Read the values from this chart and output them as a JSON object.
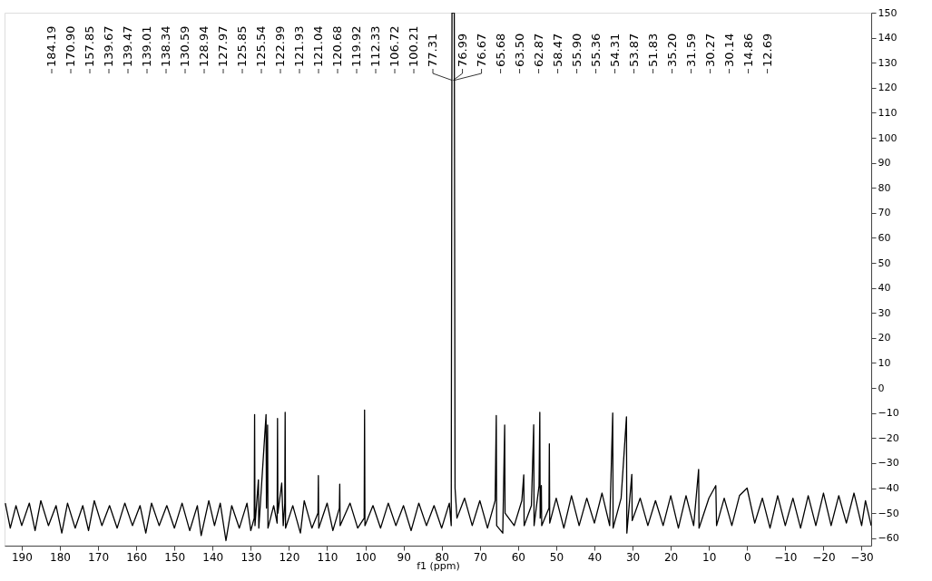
{
  "chart_data": {
    "type": "line",
    "xlabel": "f1 (ppm)",
    "xlim": [
      194.5,
      -32.5
    ],
    "xticks": [
      190,
      180,
      170,
      160,
      150,
      140,
      130,
      120,
      110,
      100,
      90,
      80,
      70,
      60,
      50,
      40,
      30,
      20,
      10,
      0,
      -10,
      -20,
      -30
    ],
    "ylim": [
      -63,
      150
    ],
    "yticks": [
      -60,
      -50,
      -40,
      -30,
      -20,
      -10,
      0,
      10,
      20,
      30,
      40,
      50,
      60,
      70,
      80,
      90,
      100,
      110,
      120,
      130,
      140,
      150
    ],
    "grid": false,
    "marker": "none",
    "line_style": "solid",
    "series": [
      {
        "color": "#000000",
        "x": [
          194.3,
          193,
          191.5,
          190,
          188,
          186.5,
          185,
          183,
          181,
          179.5,
          178,
          176,
          174,
          172.5,
          171,
          169,
          167,
          165,
          163,
          161,
          159,
          157.5,
          156,
          154,
          152,
          150,
          148,
          146,
          144,
          143,
          141,
          139.5,
          138,
          136.5,
          135,
          133,
          131,
          130,
          129.1,
          129.0,
          128.9,
          128.0,
          127.9,
          126.0,
          125.9,
          125.6,
          125.5,
          124,
          123.1,
          123.0,
          122.9,
          121.9,
          121.5,
          121.1,
          121.0,
          120.9,
          119,
          117,
          116,
          114,
          112.4,
          112.3,
          112.2,
          110,
          108.5,
          106.8,
          106.7,
          106.6,
          104,
          102,
          100.3,
          100.2,
          100.1,
          98,
          96,
          94,
          92,
          90,
          88,
          86,
          84,
          82,
          80,
          78,
          77.5,
          77.3,
          77.0,
          76.7,
          76.5,
          76,
          74,
          72,
          70,
          68,
          66,
          65.7,
          65.6,
          64,
          63.5,
          63.4,
          61,
          59,
          58.5,
          58.4,
          56.5,
          55.9,
          55.8,
          54.5,
          54.3,
          54.2,
          53.9,
          53.8,
          51.9,
          51.8,
          51.7,
          50,
          48,
          46,
          44,
          42,
          40,
          38,
          36,
          35.2,
          35.1,
          33,
          31.6,
          31.5,
          30.2,
          30.1,
          28,
          26,
          24,
          22,
          20,
          18,
          16,
          14,
          12.7,
          12.6,
          10,
          8.2,
          8,
          6,
          4,
          2,
          0,
          -2,
          -4,
          -6,
          -8,
          -10,
          -12,
          -14,
          -16,
          -18,
          -20,
          -22,
          -24,
          -26,
          -28,
          -30,
          -31,
          -32.5
        ],
        "values": [
          -46,
          -56,
          -47,
          -55,
          -46,
          -57,
          -45,
          -55,
          -47,
          -58,
          -46,
          -56,
          -47,
          -57,
          -45,
          -55,
          -47,
          -56,
          -46,
          -55,
          -47,
          -58,
          -46,
          -55,
          -47,
          -56,
          -46,
          -57,
          -47,
          -59,
          -45,
          -55,
          -46,
          -61,
          -47,
          -56,
          -46,
          -57,
          -52,
          -10.6,
          -55,
          -36.7,
          -56,
          -10.6,
          -48,
          -14.8,
          -56,
          -47,
          -54,
          -12.2,
          -50,
          -38,
          -55,
          -46,
          -9.7,
          -56,
          -47,
          -58,
          -45,
          -56,
          -50,
          -35,
          -56,
          -46,
          -57,
          -48,
          -38.4,
          -55,
          -46,
          -56,
          -52,
          -8.8,
          -55,
          -47,
          -56,
          -46,
          -55,
          -47,
          -57,
          -46,
          -55,
          -47,
          -56,
          -46,
          -55,
          150,
          150,
          150,
          -40,
          -52,
          -44,
          -55,
          -45,
          -56,
          -45,
          -11,
          -55,
          -58,
          -14.8,
          -50,
          -55,
          -45,
          -34.7,
          -55,
          -47,
          -14.7,
          -55,
          -39,
          -9.7,
          -52,
          -39,
          -55,
          -48,
          -22.3,
          -54,
          -44,
          -56,
          -43,
          -55,
          -44,
          -54,
          -42,
          -55,
          -10,
          -56,
          -44,
          -11.5,
          -58,
          -34.5,
          -53,
          -44,
          -55,
          -45,
          -55,
          -43,
          -56,
          -43,
          -55,
          -32.5,
          -56,
          -44,
          -39,
          -55,
          -44,
          -55,
          -43,
          -40,
          -54,
          -44,
          -56,
          -43,
          -55,
          -44,
          -56,
          -43,
          -55,
          -42,
          -55,
          -43,
          -54,
          -42,
          -55,
          -45,
          -55
        ]
      }
    ],
    "legend": false,
    "annotations": [
      "184.19",
      "170.90",
      "157.85",
      "139.67",
      "139.47",
      "139.01",
      "138.34",
      "130.59",
      "128.94",
      "127.97",
      "125.85",
      "125.54",
      "122.99",
      "121.93",
      "121.04",
      "120.68",
      "119.92",
      "112.33",
      "106.72",
      "100.21",
      {
        "text": "77.31",
        "x": 77.31,
        "y": 123
      },
      {
        "text": "76.99",
        "x": 76.99,
        "y": 123
      },
      {
        "text": "76.67",
        "x": 76.67,
        "y": 123
      },
      "65.68",
      "63.50",
      "62.87",
      "58.47",
      "55.90",
      "55.36",
      "54.31",
      "53.87",
      "51.83",
      "35.20",
      "31.59",
      "30.27",
      "30.14",
      "14.86",
      "12.69"
    ]
  }
}
